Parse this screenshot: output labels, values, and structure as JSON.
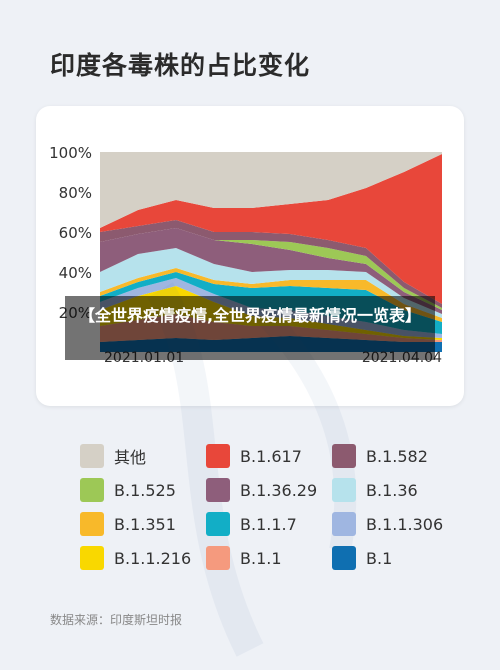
{
  "title": "印度各毒株的占比变化",
  "source": "数据来源：印度斯坦时报",
  "overlay_text": "【全世界疫情疫情,全世界疫情最新情况一览表】",
  "legend": [
    {
      "label": "其他",
      "color": "#d5d0c6"
    },
    {
      "label": "B.1.617",
      "color": "#e8473a"
    },
    {
      "label": "B.1.582",
      "color": "#8c5a6f"
    },
    {
      "label": "B.1.525",
      "color": "#9dc856"
    },
    {
      "label": "B.1.36.29",
      "color": "#8e5e7b"
    },
    {
      "label": "B.1.36",
      "color": "#b6e2ec"
    },
    {
      "label": "B.1.351",
      "color": "#f8b92a"
    },
    {
      "label": "B.1.1.7",
      "color": "#12aec6"
    },
    {
      "label": "B.1.1.306",
      "color": "#9fb6e1"
    },
    {
      "label": "B.1.1.216",
      "color": "#f9d800"
    },
    {
      "label": "B.1.1",
      "color": "#f59a7e"
    },
    {
      "label": "B.1",
      "color": "#0f6fb1"
    }
  ],
  "chart_data": {
    "type": "area",
    "stacked": true,
    "x": [
      "2021.01.01",
      "2021.01.12",
      "2021.01.23",
      "2021.02.03",
      "2021.02.14",
      "2021.02.25",
      "2021.03.08",
      "2021.03.19",
      "2021.03.30",
      "2021.04.04"
    ],
    "x_tick_labels": [
      "2021.01.01",
      "2021.04.04"
    ],
    "y_tick_labels": [
      "20%",
      "40%",
      "60%",
      "80%",
      "100%"
    ],
    "ylim": [
      0,
      100
    ],
    "series": [
      {
        "name": "B.1",
        "color": "#0f6fb1",
        "values": [
          5,
          6,
          7,
          6,
          7,
          8,
          7,
          6,
          5,
          5
        ]
      },
      {
        "name": "B.1.1",
        "color": "#f59a7e",
        "values": [
          8,
          10,
          12,
          9,
          6,
          5,
          4,
          3,
          2,
          1
        ]
      },
      {
        "name": "B.1.1.216",
        "color": "#f9d800",
        "values": [
          8,
          12,
          14,
          10,
          5,
          4,
          3,
          2,
          1,
          1
        ]
      },
      {
        "name": "B.1.1.306",
        "color": "#9fb6e1",
        "values": [
          4,
          4,
          4,
          4,
          4,
          4,
          4,
          4,
          3,
          2
        ]
      },
      {
        "name": "B.1.1.7",
        "color": "#12aec6",
        "values": [
          3,
          3,
          3,
          5,
          10,
          12,
          14,
          16,
          10,
          6
        ]
      },
      {
        "name": "B.1.351",
        "color": "#f8b92a",
        "values": [
          2,
          2,
          2,
          2,
          2,
          3,
          4,
          5,
          3,
          2
        ]
      },
      {
        "name": "B.1.36",
        "color": "#b6e2ec",
        "values": [
          10,
          12,
          10,
          8,
          6,
          5,
          5,
          4,
          3,
          2
        ]
      },
      {
        "name": "B.1.36.29",
        "color": "#8e5e7b",
        "values": [
          15,
          10,
          10,
          12,
          14,
          10,
          6,
          4,
          3,
          2
        ]
      },
      {
        "name": "B.1.525",
        "color": "#9dc856",
        "values": [
          0,
          0,
          0,
          0,
          2,
          4,
          5,
          4,
          2,
          1
        ]
      },
      {
        "name": "B.1.582",
        "color": "#8c5a6f",
        "values": [
          5,
          4,
          4,
          4,
          4,
          4,
          4,
          4,
          3,
          2
        ]
      },
      {
        "name": "B.1.617",
        "color": "#e8473a",
        "values": [
          2,
          8,
          10,
          12,
          12,
          15,
          20,
          30,
          55,
          75
        ]
      },
      {
        "name": "其他",
        "color": "#d5d0c6",
        "values": [
          38,
          29,
          24,
          28,
          28,
          26,
          24,
          18,
          10,
          1
        ]
      }
    ]
  }
}
